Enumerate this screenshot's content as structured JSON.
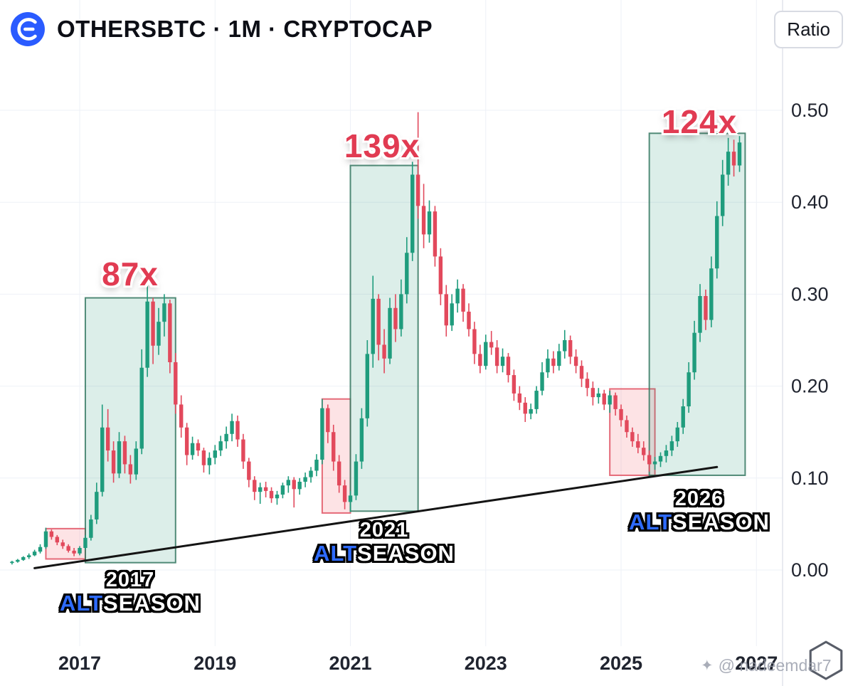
{
  "header": {
    "title": "OTHERSBTC · 1M · CRYPTOCAP"
  },
  "ratio_button": {
    "label": "Ratio"
  },
  "watermark": {
    "icon": "sparkle-icon",
    "text": "@ nadeemdar7"
  },
  "colors": {
    "up": "#1f9c7d",
    "down": "#e2495c",
    "box_green_fill": "rgba(22,142,110,0.15)",
    "box_green_stroke": "rgba(53,120,98,0.85)",
    "box_pink_fill": "rgba(240,78,94,0.16)",
    "box_pink_stroke": "rgba(222,73,90,0.8)",
    "accent_blue": "#2e6bff",
    "label_red": "#e13b52",
    "logo_blue": "#2a5bff",
    "trendline": "#141414",
    "grid": "#eef1f7",
    "axis_text": "#20242f"
  },
  "chart_data": {
    "type": "candlestick",
    "symbol": "OTHERSBTC",
    "interval": "1M",
    "exchange": "CRYPTOCAP",
    "ylabel": "Ratio",
    "ylim": [
      0,
      0.5
    ],
    "grid": true,
    "y_ticks": [
      0,
      0.1,
      0.2,
      0.3,
      0.4,
      0.5
    ],
    "x_ticks": [
      2017,
      2019,
      2021,
      2023,
      2025,
      2027
    ],
    "candles": [
      [
        "2016-01",
        0.008,
        0.01,
        0.006,
        0.009
      ],
      [
        "2016-02",
        0.009,
        0.012,
        0.008,
        0.011
      ],
      [
        "2016-03",
        0.011,
        0.015,
        0.01,
        0.014
      ],
      [
        "2016-04",
        0.014,
        0.018,
        0.012,
        0.016
      ],
      [
        "2016-05",
        0.016,
        0.022,
        0.015,
        0.02
      ],
      [
        "2016-06",
        0.02,
        0.028,
        0.018,
        0.025
      ],
      [
        "2016-07",
        0.025,
        0.046,
        0.023,
        0.042
      ],
      [
        "2016-08",
        0.042,
        0.044,
        0.033,
        0.036
      ],
      [
        "2016-09",
        0.036,
        0.038,
        0.027,
        0.03
      ],
      [
        "2016-10",
        0.03,
        0.033,
        0.023,
        0.026
      ],
      [
        "2016-11",
        0.026,
        0.028,
        0.019,
        0.021
      ],
      [
        "2016-12",
        0.021,
        0.024,
        0.015,
        0.018
      ],
      [
        "2017-01",
        0.018,
        0.026,
        0.016,
        0.024
      ],
      [
        "2017-02",
        0.024,
        0.038,
        0.022,
        0.035
      ],
      [
        "2017-03",
        0.035,
        0.06,
        0.032,
        0.055
      ],
      [
        "2017-04",
        0.055,
        0.095,
        0.05,
        0.085
      ],
      [
        "2017-05",
        0.085,
        0.18,
        0.08,
        0.155
      ],
      [
        "2017-06",
        0.155,
        0.175,
        0.118,
        0.13
      ],
      [
        "2017-07",
        0.13,
        0.14,
        0.095,
        0.105
      ],
      [
        "2017-08",
        0.105,
        0.15,
        0.1,
        0.14
      ],
      [
        "2017-09",
        0.14,
        0.146,
        0.105,
        0.115
      ],
      [
        "2017-10",
        0.115,
        0.125,
        0.094,
        0.104
      ],
      [
        "2017-11",
        0.104,
        0.14,
        0.098,
        0.132
      ],
      [
        "2017-12",
        0.132,
        0.24,
        0.126,
        0.22
      ],
      [
        "2018-01",
        0.22,
        0.31,
        0.21,
        0.292
      ],
      [
        "2018-02",
        0.292,
        0.296,
        0.224,
        0.244
      ],
      [
        "2018-03",
        0.244,
        0.285,
        0.234,
        0.27
      ],
      [
        "2018-04",
        0.27,
        0.3,
        0.254,
        0.29
      ],
      [
        "2018-05",
        0.29,
        0.294,
        0.214,
        0.226
      ],
      [
        "2018-06",
        0.226,
        0.236,
        0.17,
        0.18
      ],
      [
        "2018-07",
        0.18,
        0.19,
        0.144,
        0.155
      ],
      [
        "2018-08",
        0.155,
        0.16,
        0.114,
        0.125
      ],
      [
        "2018-09",
        0.125,
        0.145,
        0.12,
        0.138
      ],
      [
        "2018-10",
        0.138,
        0.142,
        0.124,
        0.13
      ],
      [
        "2018-11",
        0.13,
        0.133,
        0.106,
        0.114
      ],
      [
        "2018-12",
        0.114,
        0.128,
        0.104,
        0.122
      ],
      [
        "2019-01",
        0.122,
        0.136,
        0.115,
        0.13
      ],
      [
        "2019-02",
        0.13,
        0.146,
        0.124,
        0.14
      ],
      [
        "2019-03",
        0.14,
        0.156,
        0.132,
        0.148
      ],
      [
        "2019-04",
        0.148,
        0.17,
        0.14,
        0.162
      ],
      [
        "2019-05",
        0.162,
        0.168,
        0.134,
        0.142
      ],
      [
        "2019-06",
        0.142,
        0.148,
        0.11,
        0.118
      ],
      [
        "2019-07",
        0.118,
        0.122,
        0.09,
        0.098
      ],
      [
        "2019-08",
        0.098,
        0.102,
        0.076,
        0.085
      ],
      [
        "2019-09",
        0.085,
        0.095,
        0.072,
        0.09
      ],
      [
        "2019-10",
        0.09,
        0.096,
        0.079,
        0.086
      ],
      [
        "2019-11",
        0.086,
        0.09,
        0.073,
        0.078
      ],
      [
        "2019-12",
        0.078,
        0.086,
        0.071,
        0.082
      ],
      [
        "2020-01",
        0.082,
        0.095,
        0.078,
        0.092
      ],
      [
        "2020-02",
        0.092,
        0.102,
        0.084,
        0.098
      ],
      [
        "2020-03",
        0.098,
        0.101,
        0.068,
        0.088
      ],
      [
        "2020-04",
        0.088,
        0.1,
        0.082,
        0.096
      ],
      [
        "2020-05",
        0.096,
        0.106,
        0.09,
        0.101
      ],
      [
        "2020-06",
        0.101,
        0.112,
        0.095,
        0.108
      ],
      [
        "2020-07",
        0.108,
        0.126,
        0.102,
        0.12
      ],
      [
        "2020-08",
        0.12,
        0.186,
        0.115,
        0.176
      ],
      [
        "2020-09",
        0.176,
        0.18,
        0.138,
        0.15
      ],
      [
        "2020-10",
        0.15,
        0.158,
        0.108,
        0.118
      ],
      [
        "2020-11",
        0.118,
        0.125,
        0.084,
        0.092
      ],
      [
        "2020-12",
        0.092,
        0.098,
        0.066,
        0.074
      ],
      [
        "2021-01",
        0.074,
        0.086,
        0.063,
        0.081
      ],
      [
        "2021-02",
        0.081,
        0.126,
        0.076,
        0.118
      ],
      [
        "2021-03",
        0.118,
        0.176,
        0.11,
        0.165
      ],
      [
        "2021-04",
        0.165,
        0.25,
        0.156,
        0.235
      ],
      [
        "2021-05",
        0.235,
        0.32,
        0.22,
        0.295
      ],
      [
        "2021-06",
        0.295,
        0.3,
        0.228,
        0.245
      ],
      [
        "2021-07",
        0.245,
        0.262,
        0.214,
        0.23
      ],
      [
        "2021-08",
        0.23,
        0.296,
        0.224,
        0.285
      ],
      [
        "2021-09",
        0.285,
        0.3,
        0.248,
        0.262
      ],
      [
        "2021-10",
        0.262,
        0.316,
        0.254,
        0.3
      ],
      [
        "2021-11",
        0.3,
        0.362,
        0.29,
        0.345
      ],
      [
        "2021-12",
        0.345,
        0.444,
        0.336,
        0.43
      ],
      [
        "2022-01",
        0.43,
        0.498,
        0.382,
        0.396
      ],
      [
        "2022-02",
        0.396,
        0.42,
        0.35,
        0.365
      ],
      [
        "2022-03",
        0.365,
        0.402,
        0.356,
        0.39
      ],
      [
        "2022-04",
        0.39,
        0.396,
        0.33,
        0.341
      ],
      [
        "2022-05",
        0.341,
        0.35,
        0.288,
        0.3
      ],
      [
        "2022-06",
        0.3,
        0.31,
        0.254,
        0.266
      ],
      [
        "2022-07",
        0.266,
        0.3,
        0.26,
        0.29
      ],
      [
        "2022-08",
        0.29,
        0.316,
        0.28,
        0.306
      ],
      [
        "2022-09",
        0.306,
        0.311,
        0.27,
        0.281
      ],
      [
        "2022-10",
        0.281,
        0.29,
        0.254,
        0.262
      ],
      [
        "2022-11",
        0.262,
        0.27,
        0.224,
        0.235
      ],
      [
        "2022-12",
        0.235,
        0.245,
        0.214,
        0.222
      ],
      [
        "2023-01",
        0.222,
        0.256,
        0.218,
        0.248
      ],
      [
        "2023-02",
        0.248,
        0.26,
        0.234,
        0.242
      ],
      [
        "2023-03",
        0.242,
        0.25,
        0.214,
        0.222
      ],
      [
        "2023-04",
        0.222,
        0.241,
        0.215,
        0.232
      ],
      [
        "2023-05",
        0.232,
        0.236,
        0.204,
        0.212
      ],
      [
        "2023-06",
        0.212,
        0.218,
        0.184,
        0.192
      ],
      [
        "2023-07",
        0.192,
        0.2,
        0.174,
        0.182
      ],
      [
        "2023-08",
        0.182,
        0.188,
        0.161,
        0.17
      ],
      [
        "2023-09",
        0.17,
        0.181,
        0.164,
        0.175
      ],
      [
        "2023-10",
        0.175,
        0.2,
        0.17,
        0.195
      ],
      [
        "2023-11",
        0.195,
        0.226,
        0.19,
        0.215
      ],
      [
        "2023-12",
        0.215,
        0.24,
        0.209,
        0.23
      ],
      [
        "2024-01",
        0.23,
        0.238,
        0.214,
        0.222
      ],
      [
        "2024-02",
        0.222,
        0.246,
        0.217,
        0.238
      ],
      [
        "2024-03",
        0.238,
        0.261,
        0.23,
        0.25
      ],
      [
        "2024-04",
        0.25,
        0.255,
        0.224,
        0.232
      ],
      [
        "2024-05",
        0.232,
        0.24,
        0.214,
        0.222
      ],
      [
        "2024-06",
        0.222,
        0.228,
        0.199,
        0.208
      ],
      [
        "2024-07",
        0.208,
        0.215,
        0.189,
        0.198
      ],
      [
        "2024-08",
        0.198,
        0.205,
        0.179,
        0.188
      ],
      [
        "2024-09",
        0.188,
        0.198,
        0.181,
        0.192
      ],
      [
        "2024-10",
        0.192,
        0.196,
        0.174,
        0.18
      ],
      [
        "2024-11",
        0.18,
        0.195,
        0.171,
        0.19
      ],
      [
        "2024-12",
        0.19,
        0.193,
        0.168,
        0.175
      ],
      [
        "2025-01",
        0.175,
        0.18,
        0.156,
        0.163
      ],
      [
        "2025-02",
        0.163,
        0.168,
        0.144,
        0.15
      ],
      [
        "2025-03",
        0.15,
        0.155,
        0.134,
        0.14
      ],
      [
        "2025-04",
        0.14,
        0.148,
        0.127,
        0.133
      ],
      [
        "2025-05",
        0.133,
        0.14,
        0.119,
        0.125
      ],
      [
        "2025-06",
        0.125,
        0.13,
        0.107,
        0.115
      ],
      [
        "2025-07",
        0.115,
        0.123,
        0.109,
        0.118
      ],
      [
        "2025-08",
        0.118,
        0.128,
        0.112,
        0.124
      ],
      [
        "2025-09",
        0.124,
        0.136,
        0.117,
        0.13
      ],
      [
        "2025-10",
        0.13,
        0.146,
        0.124,
        0.14
      ],
      [
        "2025-11",
        0.14,
        0.161,
        0.134,
        0.155
      ],
      [
        "2025-12",
        0.155,
        0.186,
        0.148,
        0.178
      ],
      [
        "2026-01",
        0.178,
        0.226,
        0.171,
        0.215
      ],
      [
        "2026-02",
        0.215,
        0.271,
        0.207,
        0.258
      ],
      [
        "2026-03",
        0.258,
        0.311,
        0.248,
        0.298
      ],
      [
        "2026-04",
        0.298,
        0.305,
        0.261,
        0.272
      ],
      [
        "2026-05",
        0.272,
        0.341,
        0.264,
        0.328
      ],
      [
        "2026-06",
        0.328,
        0.401,
        0.317,
        0.385
      ],
      [
        "2026-07",
        0.385,
        0.446,
        0.374,
        0.43
      ],
      [
        "2026-08",
        0.43,
        0.47,
        0.418,
        0.455
      ],
      [
        "2026-09",
        0.455,
        0.468,
        0.428,
        0.44
      ],
      [
        "2026-10",
        0.44,
        0.472,
        0.433,
        0.465
      ]
    ],
    "boxes": [
      {
        "name": "pre-2017-pink-box",
        "type": "pink",
        "from": "2016-07",
        "to": "2017-02",
        "low": 0.012,
        "high": 0.045
      },
      {
        "name": "altseason-2017-green-box",
        "type": "green",
        "from": "2017-02",
        "to": "2018-06",
        "low": 0.008,
        "high": 0.296
      },
      {
        "name": "pre-2021-pink-box",
        "type": "pink",
        "from": "2020-08",
        "to": "2021-01",
        "low": 0.062,
        "high": 0.186
      },
      {
        "name": "altseason-2021-green-box",
        "type": "green",
        "from": "2021-01",
        "to": "2022-01",
        "low": 0.064,
        "high": 0.44
      },
      {
        "name": "pre-2026-pink-box",
        "type": "pink",
        "from": "2024-11",
        "to": "2025-07",
        "low": 0.103,
        "high": 0.197
      },
      {
        "name": "altseason-2026-green-box",
        "type": "green",
        "from": "2025-06",
        "to": "2026-11",
        "low": 0.103,
        "high": 0.475
      }
    ],
    "trendline": {
      "from": {
        "t": "2016-05",
        "v": 0.002
      },
      "to": {
        "t": "2026-06",
        "v": 0.112
      }
    },
    "annotations": {
      "multipliers": [
        {
          "text": "87x"
        },
        {
          "text": "139x"
        },
        {
          "text": "124x"
        }
      ],
      "seasons": [
        {
          "year": "2017",
          "alt": "ALT",
          "season": "SEASON"
        },
        {
          "year": "2021",
          "alt": "ALT",
          "season": "SEASON"
        },
        {
          "year": "2026",
          "alt": "ALT",
          "season": "SEASON"
        }
      ]
    }
  }
}
